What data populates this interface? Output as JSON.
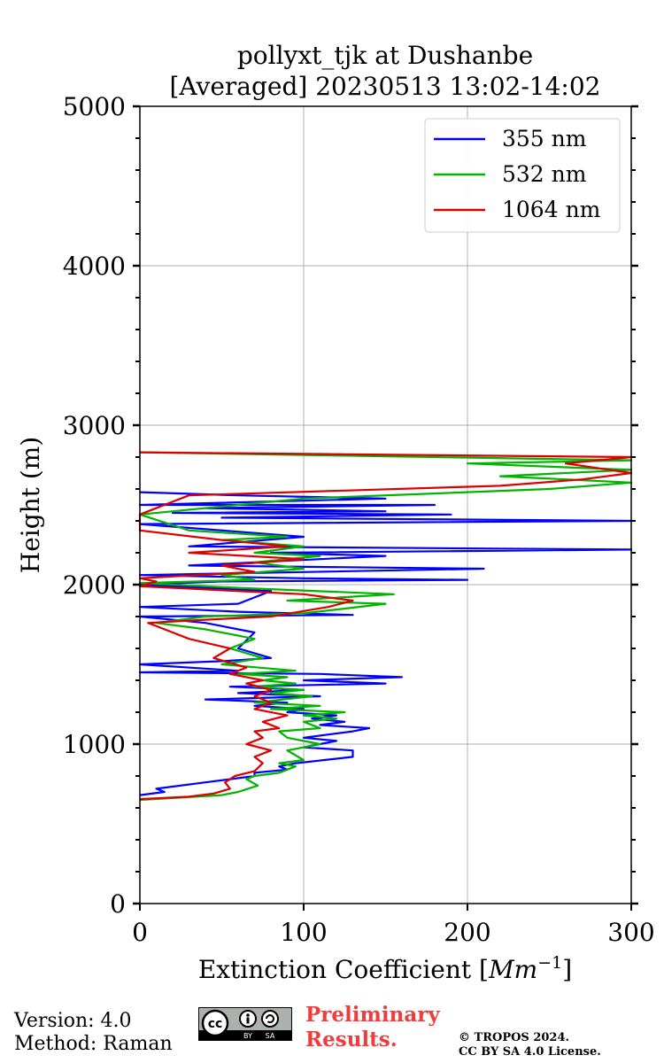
{
  "chart_data": {
    "type": "line",
    "title": "pollyxt_tjk at Dushanbe",
    "subtitle": "[Averaged] 20230513 13:02-14:02",
    "xlabel_prefix": "Extinction Coefficient [",
    "xlabel_unit": "Mm",
    "xlabel_exp": "−1",
    "xlabel_suffix": "]",
    "ylabel": "Height (m)",
    "xlim": [
      0,
      300
    ],
    "ylim": [
      0,
      5000
    ],
    "xticks": [
      0,
      100,
      200,
      300
    ],
    "yticks": [
      0,
      1000,
      2000,
      3000,
      4000,
      5000
    ],
    "y_minor_step": 200,
    "grid": true,
    "legend_position": "top-right",
    "series": [
      {
        "name": "355 nm",
        "color": "#0000ff",
        "points": [
          [
            0,
            680
          ],
          [
            15,
            700
          ],
          [
            10,
            720
          ],
          [
            40,
            760
          ],
          [
            55,
            780
          ],
          [
            70,
            800
          ],
          [
            70,
            820
          ],
          [
            90,
            840
          ],
          [
            85,
            860
          ],
          [
            95,
            880
          ],
          [
            130,
            920
          ],
          [
            130,
            960
          ],
          [
            100,
            980
          ],
          [
            110,
            1000
          ],
          [
            120,
            1020
          ],
          [
            100,
            1040
          ],
          [
            130,
            1080
          ],
          [
            140,
            1100
          ],
          [
            110,
            1120
          ],
          [
            125,
            1140
          ],
          [
            105,
            1160
          ],
          [
            120,
            1180
          ],
          [
            90,
            1200
          ],
          [
            100,
            1220
          ],
          [
            70,
            1240
          ],
          [
            90,
            1260
          ],
          [
            40,
            1280
          ],
          [
            110,
            1300
          ],
          [
            60,
            1320
          ],
          [
            100,
            1340
          ],
          [
            55,
            1360
          ],
          [
            150,
            1380
          ],
          [
            100,
            1400
          ],
          [
            160,
            1420
          ],
          [
            110,
            1440
          ],
          [
            0,
            1450
          ],
          [
            60,
            1460
          ],
          [
            0,
            1500
          ],
          [
            50,
            1520
          ],
          [
            80,
            1540
          ],
          [
            60,
            1600
          ],
          [
            70,
            1700
          ],
          [
            40,
            1760
          ],
          [
            0,
            1800
          ],
          [
            130,
            1810
          ],
          [
            60,
            1830
          ],
          [
            0,
            1860
          ],
          [
            60,
            1880
          ],
          [
            80,
            1960
          ],
          [
            0,
            2000
          ],
          [
            50,
            2020
          ],
          [
            200,
            2030
          ],
          [
            100,
            2040
          ],
          [
            0,
            2060
          ],
          [
            210,
            2100
          ],
          [
            30,
            2120
          ],
          [
            150,
            2180
          ],
          [
            80,
            2200
          ],
          [
            300,
            2220
          ],
          [
            30,
            2240
          ],
          [
            100,
            2300
          ],
          [
            0,
            2380
          ],
          [
            300,
            2400
          ],
          [
            50,
            2420
          ],
          [
            190,
            2440
          ],
          [
            20,
            2450
          ],
          [
            150,
            2460
          ],
          [
            40,
            2480
          ],
          [
            180,
            2500
          ],
          [
            0,
            2500
          ],
          [
            150,
            2540
          ],
          [
            60,
            2560
          ],
          [
            0,
            2580
          ]
        ]
      },
      {
        "name": "532 nm",
        "color": "#00b400",
        "points": [
          [
            0,
            650
          ],
          [
            50,
            680
          ],
          [
            60,
            700
          ],
          [
            72,
            740
          ],
          [
            65,
            780
          ],
          [
            70,
            800
          ],
          [
            85,
            820
          ],
          [
            90,
            840
          ],
          [
            95,
            860
          ],
          [
            85,
            880
          ],
          [
            100,
            900
          ],
          [
            90,
            960
          ],
          [
            110,
            1000
          ],
          [
            90,
            1040
          ],
          [
            85,
            1080
          ],
          [
            110,
            1100
          ],
          [
            100,
            1140
          ],
          [
            120,
            1160
          ],
          [
            100,
            1180
          ],
          [
            125,
            1200
          ],
          [
            80,
            1220
          ],
          [
            110,
            1240
          ],
          [
            70,
            1260
          ],
          [
            105,
            1300
          ],
          [
            80,
            1320
          ],
          [
            100,
            1340
          ],
          [
            70,
            1360
          ],
          [
            95,
            1380
          ],
          [
            75,
            1400
          ],
          [
            90,
            1420
          ],
          [
            60,
            1440
          ],
          [
            95,
            1460
          ],
          [
            50,
            1500
          ],
          [
            75,
            1540
          ],
          [
            55,
            1600
          ],
          [
            70,
            1660
          ],
          [
            40,
            1720
          ],
          [
            10,
            1760
          ],
          [
            40,
            1800
          ],
          [
            100,
            1820
          ],
          [
            150,
            1880
          ],
          [
            90,
            1900
          ],
          [
            155,
            1940
          ],
          [
            60,
            1980
          ],
          [
            0,
            2010
          ],
          [
            70,
            2030
          ],
          [
            50,
            2060
          ],
          [
            100,
            2100
          ],
          [
            70,
            2140
          ],
          [
            110,
            2180
          ],
          [
            70,
            2200
          ],
          [
            100,
            2240
          ],
          [
            50,
            2280
          ],
          [
            90,
            2300
          ],
          [
            30,
            2340
          ],
          [
            0,
            2440
          ],
          [
            100,
            2540
          ],
          [
            250,
            2600
          ],
          [
            300,
            2640
          ],
          [
            220,
            2680
          ],
          [
            300,
            2720
          ],
          [
            200,
            2760
          ],
          [
            300,
            2780
          ],
          [
            0,
            2830
          ]
        ]
      },
      {
        "name": "1064 nm",
        "color": "#dc0000",
        "points": [
          [
            0,
            655
          ],
          [
            30,
            670
          ],
          [
            45,
            690
          ],
          [
            55,
            720
          ],
          [
            52,
            760
          ],
          [
            58,
            800
          ],
          [
            70,
            830
          ],
          [
            75,
            880
          ],
          [
            70,
            920
          ],
          [
            80,
            960
          ],
          [
            65,
            1000
          ],
          [
            75,
            1040
          ],
          [
            70,
            1080
          ],
          [
            85,
            1100
          ],
          [
            75,
            1140
          ],
          [
            90,
            1180
          ],
          [
            70,
            1220
          ],
          [
            80,
            1260
          ],
          [
            70,
            1300
          ],
          [
            80,
            1340
          ],
          [
            65,
            1380
          ],
          [
            75,
            1400
          ],
          [
            55,
            1440
          ],
          [
            65,
            1480
          ],
          [
            45,
            1540
          ],
          [
            55,
            1600
          ],
          [
            30,
            1660
          ],
          [
            15,
            1720
          ],
          [
            5,
            1760
          ],
          [
            40,
            1780
          ],
          [
            80,
            1800
          ],
          [
            115,
            1860
          ],
          [
            130,
            1900
          ],
          [
            100,
            1940
          ],
          [
            0,
            1990
          ],
          [
            10,
            2020
          ],
          [
            0,
            2040
          ],
          [
            70,
            2080
          ],
          [
            50,
            2120
          ],
          [
            100,
            2160
          ],
          [
            30,
            2200
          ],
          [
            90,
            2240
          ],
          [
            50,
            2280
          ],
          [
            0,
            2340
          ],
          [
            0,
            2440
          ],
          [
            30,
            2560
          ],
          [
            220,
            2620
          ],
          [
            270,
            2660
          ],
          [
            300,
            2700
          ],
          [
            260,
            2760
          ],
          [
            300,
            2800
          ],
          [
            0,
            2830
          ]
        ]
      }
    ]
  },
  "footer": {
    "version": "Version: 4.0",
    "method": "Method: Raman",
    "preliminary_line1": "Preliminary",
    "preliminary_line2": "Results.",
    "copyright_line1": "© TROPOS 2024.",
    "copyright_line2": "CC BY SA 4.0 License.",
    "license_badge_text": "cc",
    "license_badge_by": "BY",
    "license_badge_sa": "SA"
  }
}
